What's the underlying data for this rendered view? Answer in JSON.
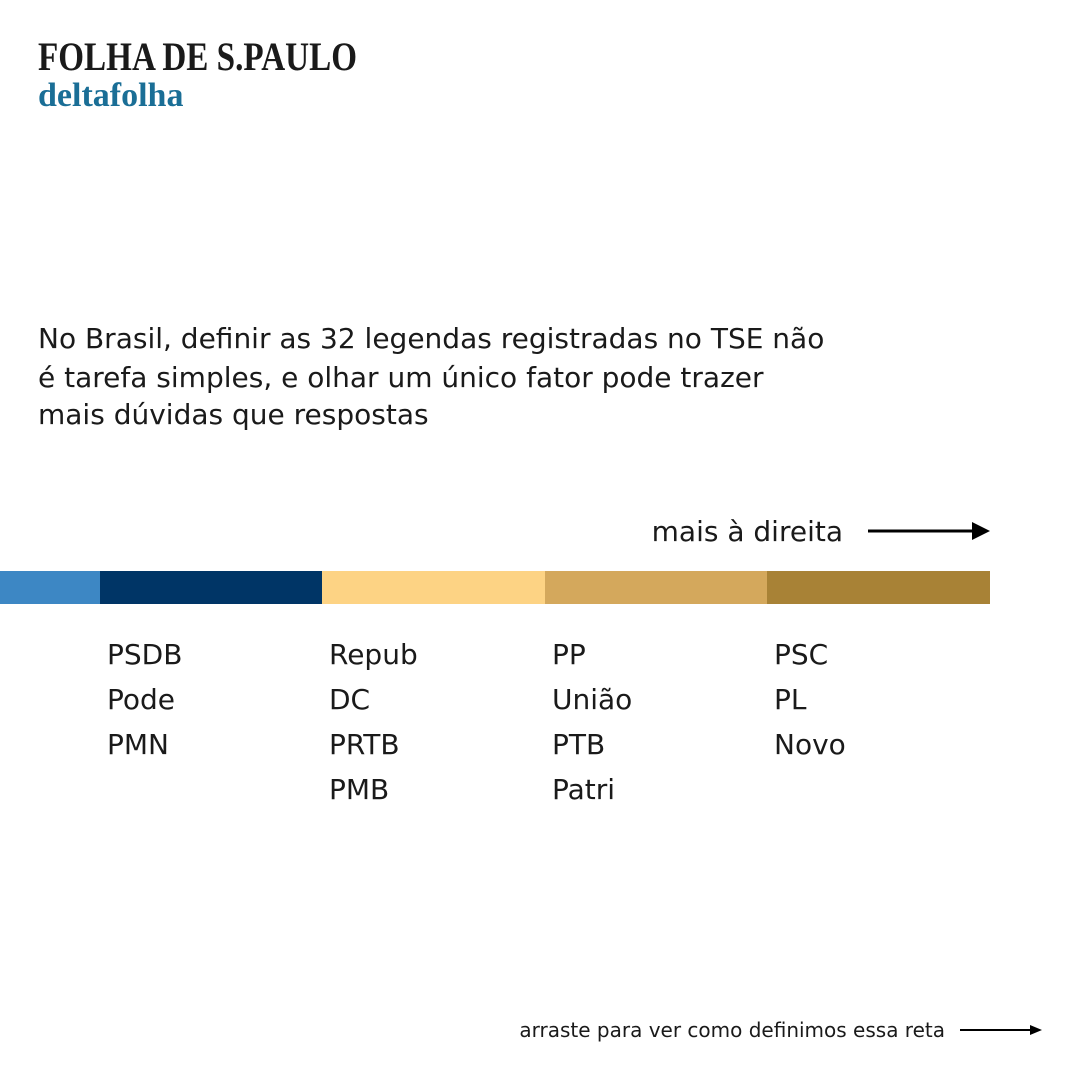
{
  "header": {
    "brand": "FOLHA DE S.PAULO",
    "section": "deltafolha"
  },
  "intro": [
    "No Brasil, definir as 32 legendas registradas no TSE não",
    "é tarefa simples, e olhar um único fator pode trazer",
    "mais dúvidas que respostas"
  ],
  "direction_label": "mais à direita",
  "spectrum": {
    "segments": [
      {
        "color": "#3d87c4",
        "parties": []
      },
      {
        "color": "#003566",
        "parties": [
          "PSDB",
          "Pode",
          "PMN"
        ]
      },
      {
        "color": "#fdd384",
        "parties": [
          "Repub",
          "DC",
          "PRTB",
          "PMB"
        ]
      },
      {
        "color": "#d4a85c",
        "parties": [
          "PP",
          "União",
          "PTB",
          "Patri"
        ]
      },
      {
        "color": "#a88236",
        "parties": [
          "PSC",
          "PL",
          "Novo"
        ]
      }
    ]
  },
  "footer": "arraste para ver como definimos essa reta"
}
